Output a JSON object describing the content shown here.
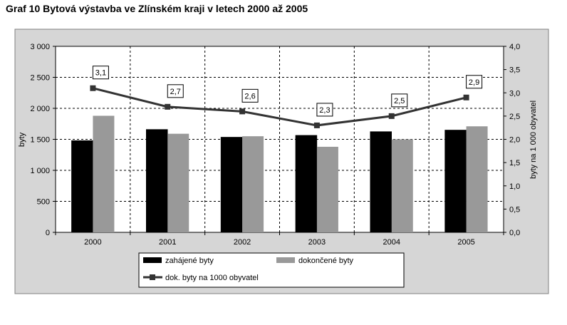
{
  "chart_data": {
    "type": "bar",
    "title": "Graf 10 Bytová výstavba ve Zlínském kraji v letech 2000 až 2005",
    "categories": [
      "2000",
      "2001",
      "2002",
      "2003",
      "2004",
      "2005"
    ],
    "series": [
      {
        "name": "zahájené byty",
        "type": "bar",
        "axis": "left",
        "color": "#000000",
        "values": [
          1480,
          1660,
          1535,
          1565,
          1625,
          1650
        ]
      },
      {
        "name": "dokončené byty",
        "type": "bar",
        "axis": "left",
        "color": "#999999",
        "values": [
          1880,
          1590,
          1550,
          1380,
          1500,
          1710
        ]
      },
      {
        "name": "dok. byty na 1000 obyvatel",
        "type": "line",
        "axis": "right",
        "color": "#333333",
        "values": [
          3.1,
          2.7,
          2.6,
          2.3,
          2.5,
          2.9
        ],
        "labels": [
          "3,1",
          "2,7",
          "2,6",
          "2,3",
          "2,5",
          "2,9"
        ]
      }
    ],
    "ylabel": "byty",
    "ylabel_right": "byty na 1 000 obyvatel",
    "ylim": [
      0,
      3000
    ],
    "ylim_right": [
      0,
      4.0
    ],
    "yticks": [
      "0",
      "500",
      "1 000",
      "1 500",
      "2 000",
      "2 500",
      "3 000"
    ],
    "yticks_right": [
      "0,0",
      "0,5",
      "1,0",
      "1,5",
      "2,0",
      "2,5",
      "3,0",
      "3,5",
      "4,0"
    ],
    "grid": true,
    "legend_position": "bottom"
  }
}
